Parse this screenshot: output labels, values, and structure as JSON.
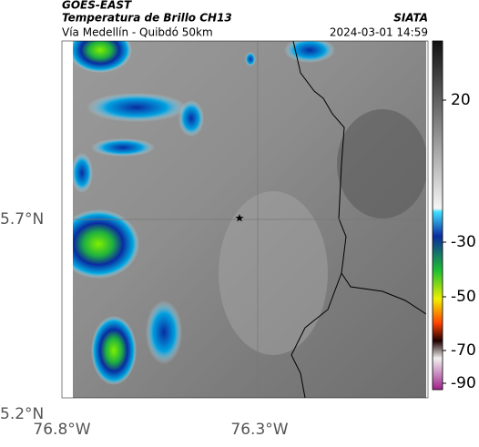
{
  "header": {
    "satellite": "GOES-EAST",
    "product": "Temperatura de Brillo CH13",
    "region": "Vía Medellín - Quibdó 50km",
    "source": "SIATA",
    "timestamp": "2024-03-01 14:59"
  },
  "axes": {
    "lat_labels": [
      "5.7°N",
      "5.2°N"
    ],
    "lon_labels": [
      "76.8°W",
      "76.3°W"
    ]
  },
  "colorbar": {
    "tick_labels": [
      "20",
      "-30",
      "-50",
      "-70",
      "-90"
    ]
  }
}
